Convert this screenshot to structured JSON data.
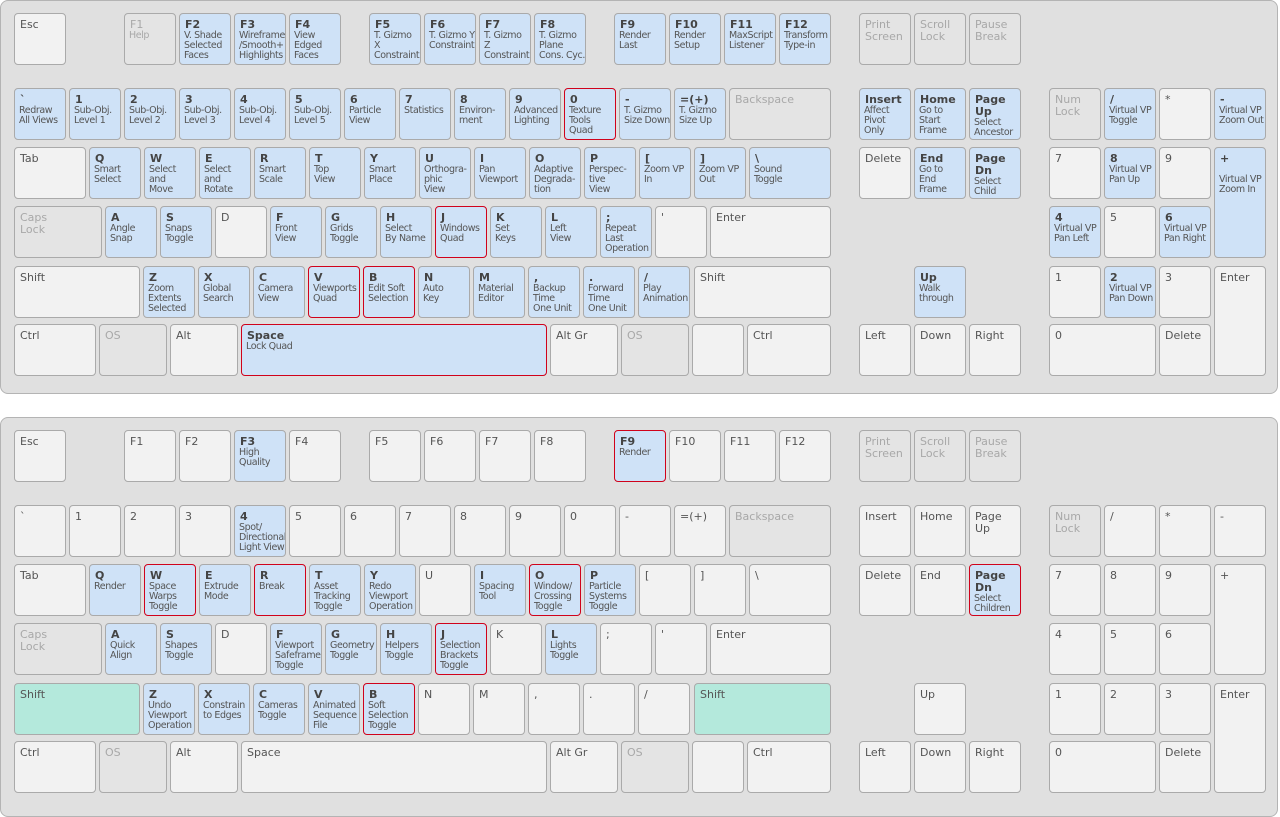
{
  "colors": {
    "mapped": "#cfe2f7",
    "selected_border": "#d0021b",
    "plain": "#f2f2f2",
    "disabled": "#e4e4e4",
    "modifier_active": "#b4e9dc",
    "panel": "#e0e0e0"
  },
  "keyboards": [
    {
      "keys": [
        {
          "k": "Esc",
          "l": "",
          "s": "p"
        },
        {
          "k": "F1",
          "l": "Help",
          "s": "d"
        },
        {
          "k": "F2",
          "l": "V. Shade\nSelected\nFaces",
          "s": "m"
        },
        {
          "k": "F3",
          "l": "Wireframe\n/Smooth+\nHighlights",
          "s": "m"
        },
        {
          "k": "F4",
          "l": "View\nEdged\nFaces",
          "s": "m"
        },
        {
          "k": "F5",
          "l": "T. Gizmo X\nConstraint",
          "s": "m"
        },
        {
          "k": "F6",
          "l": "T. Gizmo Y\nConstraint",
          "s": "m"
        },
        {
          "k": "F7",
          "l": "T. Gizmo Z\nConstraint",
          "s": "m"
        },
        {
          "k": "F8",
          "l": "T. Gizmo\nPlane\nCons. Cyc.",
          "s": "m"
        },
        {
          "k": "F9",
          "l": "Render\nLast",
          "s": "m"
        },
        {
          "k": "F10",
          "l": "Render\nSetup",
          "s": "m"
        },
        {
          "k": "F11",
          "l": "MaxScript\nListener",
          "s": "m"
        },
        {
          "k": "F12",
          "l": "Transform\nType-in",
          "s": "m"
        },
        {
          "k": "Print\nScreen",
          "l": "",
          "s": "d"
        },
        {
          "k": "Scroll\nLock",
          "l": "",
          "s": "d"
        },
        {
          "k": "Pause\nBreak",
          "l": "",
          "s": "d"
        },
        {
          "k": "`",
          "l": "Redraw\nAll Views",
          "s": "m"
        },
        {
          "k": "1",
          "l": "Sub-Obj.\nLevel 1",
          "s": "m"
        },
        {
          "k": "2",
          "l": "Sub-Obj.\nLevel 2",
          "s": "m"
        },
        {
          "k": "3",
          "l": "Sub-Obj.\nLevel 3",
          "s": "m"
        },
        {
          "k": "4",
          "l": "Sub-Obj.\nLevel 4",
          "s": "m"
        },
        {
          "k": "5",
          "l": "Sub-Obj.\nLevel 5",
          "s": "m"
        },
        {
          "k": "6",
          "l": "Particle\nView",
          "s": "m"
        },
        {
          "k": "7",
          "l": "Statistics",
          "s": "m"
        },
        {
          "k": "8",
          "l": "Environ-\nment",
          "s": "m"
        },
        {
          "k": "9",
          "l": "Advanced\nLighting",
          "s": "m"
        },
        {
          "k": "0",
          "l": "Texture\nTools\nQuad",
          "s": "s"
        },
        {
          "k": "-",
          "l": "T. Gizmo\nSize Down",
          "s": "m"
        },
        {
          "k": "=(+)",
          "l": "T. Gizmo\nSize Up",
          "s": "m"
        },
        {
          "k": "Backspace",
          "l": "",
          "s": "d"
        },
        {
          "k": "Insert",
          "l": "Affect\nPivot\nOnly",
          "s": "m"
        },
        {
          "k": "Home",
          "l": "Go to\nStart\nFrame",
          "s": "m"
        },
        {
          "k": "Page Up",
          "l": "Select\nAncestor",
          "s": "m"
        },
        {
          "k": "Num\nLock",
          "l": "",
          "s": "d"
        },
        {
          "k": "/",
          "l": "Virtual VP\nToggle",
          "s": "m"
        },
        {
          "k": "*",
          "l": "",
          "s": "p"
        },
        {
          "k": "-",
          "l": "Virtual VP\nZoom Out",
          "s": "m"
        },
        {
          "k": "Tab",
          "l": "",
          "s": "p"
        },
        {
          "k": "Q",
          "l": "Smart\nSelect",
          "s": "m"
        },
        {
          "k": "W",
          "l": "Select\nand\nMove",
          "s": "m"
        },
        {
          "k": "E",
          "l": "Select\nand\nRotate",
          "s": "m"
        },
        {
          "k": "R",
          "l": "Smart\nScale",
          "s": "m"
        },
        {
          "k": "T",
          "l": "Top\nView",
          "s": "m"
        },
        {
          "k": "Y",
          "l": "Smart\nPlace",
          "s": "m"
        },
        {
          "k": "U",
          "l": "Orthogra-\nphic\nView",
          "s": "m"
        },
        {
          "k": "I",
          "l": "Pan\nViewport",
          "s": "m"
        },
        {
          "k": "O",
          "l": "Adaptive\nDegrada-\ntion",
          "s": "m"
        },
        {
          "k": "P",
          "l": "Perspec-\ntive\nView",
          "s": "m"
        },
        {
          "k": "[",
          "l": "Zoom VP\nIn",
          "s": "m"
        },
        {
          "k": "]",
          "l": "Zoom VP\nOut",
          "s": "m"
        },
        {
          "k": "\\",
          "l": "Sound\nToggle",
          "s": "m"
        },
        {
          "k": "Delete",
          "l": "",
          "s": "p"
        },
        {
          "k": "End",
          "l": "Go to\nEnd\nFrame",
          "s": "m"
        },
        {
          "k": "Page Dn",
          "l": "Select\nChild",
          "s": "m"
        },
        {
          "k": "7",
          "l": "",
          "s": "p"
        },
        {
          "k": "8",
          "l": "Virtual VP\nPan Up",
          "s": "m"
        },
        {
          "k": "9",
          "l": "",
          "s": "p"
        },
        {
          "k": "+",
          "l": "\nVirtual VP\nZoom In",
          "s": "m"
        },
        {
          "k": "Caps\nLock",
          "l": "",
          "s": "d"
        },
        {
          "k": "A",
          "l": "Angle\nSnap",
          "s": "m"
        },
        {
          "k": "S",
          "l": "Snaps\nToggle",
          "s": "m"
        },
        {
          "k": "D",
          "l": "",
          "s": "p"
        },
        {
          "k": "F",
          "l": "Front\nView",
          "s": "m"
        },
        {
          "k": "G",
          "l": "Grids\nToggle",
          "s": "m"
        },
        {
          "k": "H",
          "l": "Select\nBy Name",
          "s": "m"
        },
        {
          "k": "J",
          "l": "Windows\nQuad",
          "s": "s"
        },
        {
          "k": "K",
          "l": "Set\nKeys",
          "s": "m"
        },
        {
          "k": "L",
          "l": "Left\nView",
          "s": "m"
        },
        {
          "k": ";",
          "l": "Repeat\nLast\nOperation",
          "s": "m"
        },
        {
          "k": "'",
          "l": "",
          "s": "p"
        },
        {
          "k": "Enter",
          "l": "",
          "s": "p"
        },
        {
          "k": "4",
          "l": "Virtual VP\nPan Left",
          "s": "m"
        },
        {
          "k": "5",
          "l": "",
          "s": "p"
        },
        {
          "k": "6",
          "l": "Virtual VP\nPan Right",
          "s": "m"
        },
        {
          "k": "Shift",
          "l": "",
          "s": "p"
        },
        {
          "k": "Z",
          "l": "Zoom\nExtents\nSelected",
          "s": "m"
        },
        {
          "k": "X",
          "l": "Global\nSearch",
          "s": "m"
        },
        {
          "k": "C",
          "l": "Camera\nView",
          "s": "m"
        },
        {
          "k": "V",
          "l": "Viewports\nQuad",
          "s": "s"
        },
        {
          "k": "B",
          "l": "Edit Soft\nSelection",
          "s": "s"
        },
        {
          "k": "N",
          "l": "Auto\nKey",
          "s": "m"
        },
        {
          "k": "M",
          "l": "Material\nEditor",
          "s": "m"
        },
        {
          "k": ",",
          "l": "Backup\nTime\nOne Unit",
          "s": "m"
        },
        {
          "k": ".",
          "l": "Forward\nTime\nOne Unit",
          "s": "m"
        },
        {
          "k": "/",
          "l": "Play\nAnimation",
          "s": "m"
        },
        {
          "k": "Shift",
          "l": "",
          "s": "p"
        },
        {
          "k": "Up",
          "l": "Walk\nthrough",
          "s": "m"
        },
        {
          "k": "1",
          "l": "",
          "s": "p"
        },
        {
          "k": "2",
          "l": "Virtual VP\nPan Down",
          "s": "m"
        },
        {
          "k": "3",
          "l": "",
          "s": "p"
        },
        {
          "k": "Enter",
          "l": "",
          "s": "p"
        },
        {
          "k": "Ctrl",
          "l": "",
          "s": "p"
        },
        {
          "k": "OS",
          "l": "",
          "s": "d"
        },
        {
          "k": "Alt",
          "l": "",
          "s": "p"
        },
        {
          "k": "Space",
          "l": "Lock Quad",
          "s": "s"
        },
        {
          "k": "Alt Gr",
          "l": "",
          "s": "p"
        },
        {
          "k": "OS",
          "l": "",
          "s": "d"
        },
        {
          "k": "",
          "l": "",
          "s": "p"
        },
        {
          "k": "Ctrl",
          "l": "",
          "s": "p"
        },
        {
          "k": "Left",
          "l": "",
          "s": "p"
        },
        {
          "k": "Down",
          "l": "",
          "s": "p"
        },
        {
          "k": "Right",
          "l": "",
          "s": "p"
        },
        {
          "k": "0",
          "l": "",
          "s": "p"
        },
        {
          "k": "Delete",
          "l": "",
          "s": "p"
        }
      ]
    },
    {
      "keys": [
        {
          "k": "Esc",
          "l": "",
          "s": "p"
        },
        {
          "k": "F1",
          "l": "",
          "s": "p"
        },
        {
          "k": "F2",
          "l": "",
          "s": "p"
        },
        {
          "k": "F3",
          "l": "High\nQuality",
          "s": "m"
        },
        {
          "k": "F4",
          "l": "",
          "s": "p"
        },
        {
          "k": "F5",
          "l": "",
          "s": "p"
        },
        {
          "k": "F6",
          "l": "",
          "s": "p"
        },
        {
          "k": "F7",
          "l": "",
          "s": "p"
        },
        {
          "k": "F8",
          "l": "",
          "s": "p"
        },
        {
          "k": "F9",
          "l": "Render",
          "s": "s"
        },
        {
          "k": "F10",
          "l": "",
          "s": "p"
        },
        {
          "k": "F11",
          "l": "",
          "s": "p"
        },
        {
          "k": "F12",
          "l": "",
          "s": "p"
        },
        {
          "k": "Print\nScreen",
          "l": "",
          "s": "d"
        },
        {
          "k": "Scroll\nLock",
          "l": "",
          "s": "d"
        },
        {
          "k": "Pause\nBreak",
          "l": "",
          "s": "d"
        },
        {
          "k": "`",
          "l": "",
          "s": "p"
        },
        {
          "k": "1",
          "l": "",
          "s": "p"
        },
        {
          "k": "2",
          "l": "",
          "s": "p"
        },
        {
          "k": "3",
          "l": "",
          "s": "p"
        },
        {
          "k": "4",
          "l": "Spot/\nDirectional\nLight View",
          "s": "m"
        },
        {
          "k": "5",
          "l": "",
          "s": "p"
        },
        {
          "k": "6",
          "l": "",
          "s": "p"
        },
        {
          "k": "7",
          "l": "",
          "s": "p"
        },
        {
          "k": "8",
          "l": "",
          "s": "p"
        },
        {
          "k": "9",
          "l": "",
          "s": "p"
        },
        {
          "k": "0",
          "l": "",
          "s": "p"
        },
        {
          "k": "-",
          "l": "",
          "s": "p"
        },
        {
          "k": "=(+)",
          "l": "",
          "s": "p"
        },
        {
          "k": "Backspace",
          "l": "",
          "s": "d"
        },
        {
          "k": "Insert",
          "l": "",
          "s": "p"
        },
        {
          "k": "Home",
          "l": "",
          "s": "p"
        },
        {
          "k": "Page Up",
          "l": "",
          "s": "p"
        },
        {
          "k": "Num\nLock",
          "l": "",
          "s": "d"
        },
        {
          "k": "/",
          "l": "",
          "s": "p"
        },
        {
          "k": "*",
          "l": "",
          "s": "p"
        },
        {
          "k": "-",
          "l": "",
          "s": "p"
        },
        {
          "k": "Tab",
          "l": "",
          "s": "p"
        },
        {
          "k": "Q",
          "l": "Render",
          "s": "m"
        },
        {
          "k": "W",
          "l": "Space\nWarps\nToggle",
          "s": "s"
        },
        {
          "k": "E",
          "l": "Extrude\nMode",
          "s": "m"
        },
        {
          "k": "R",
          "l": "Break",
          "s": "s"
        },
        {
          "k": "T",
          "l": "Asset\nTracking\nToggle",
          "s": "m"
        },
        {
          "k": "Y",
          "l": "Redo\nViewport\nOperation",
          "s": "m"
        },
        {
          "k": "U",
          "l": "",
          "s": "p"
        },
        {
          "k": "I",
          "l": "Spacing\nTool",
          "s": "m"
        },
        {
          "k": "O",
          "l": "Window/\nCrossing\nToggle",
          "s": "s"
        },
        {
          "k": "P",
          "l": "Particle\nSystems\nToggle",
          "s": "m"
        },
        {
          "k": "[",
          "l": "",
          "s": "p"
        },
        {
          "k": "]",
          "l": "",
          "s": "p"
        },
        {
          "k": "\\",
          "l": "",
          "s": "p"
        },
        {
          "k": "Delete",
          "l": "",
          "s": "p"
        },
        {
          "k": "End",
          "l": "",
          "s": "p"
        },
        {
          "k": "Page Dn",
          "l": "Select\nChildren",
          "s": "s"
        },
        {
          "k": "7",
          "l": "",
          "s": "p"
        },
        {
          "k": "8",
          "l": "",
          "s": "p"
        },
        {
          "k": "9",
          "l": "",
          "s": "p"
        },
        {
          "k": "+",
          "l": "",
          "s": "p"
        },
        {
          "k": "Caps\nLock",
          "l": "",
          "s": "d"
        },
        {
          "k": "A",
          "l": "Quick\nAlign",
          "s": "m"
        },
        {
          "k": "S",
          "l": "Shapes\nToggle",
          "s": "m"
        },
        {
          "k": "D",
          "l": "",
          "s": "p"
        },
        {
          "k": "F",
          "l": "Viewport\nSafeframes\nToggle",
          "s": "m"
        },
        {
          "k": "G",
          "l": "Geometry\nToggle",
          "s": "m"
        },
        {
          "k": "H",
          "l": "Helpers\nToggle",
          "s": "m"
        },
        {
          "k": "J",
          "l": "Selection\nBrackets\nToggle",
          "s": "s"
        },
        {
          "k": "K",
          "l": "",
          "s": "p"
        },
        {
          "k": "L",
          "l": "Lights\nToggle",
          "s": "m"
        },
        {
          "k": ";",
          "l": "",
          "s": "p"
        },
        {
          "k": "'",
          "l": "",
          "s": "p"
        },
        {
          "k": "Enter",
          "l": "",
          "s": "p"
        },
        {
          "k": "4",
          "l": "",
          "s": "p"
        },
        {
          "k": "5",
          "l": "",
          "s": "p"
        },
        {
          "k": "6",
          "l": "",
          "s": "p"
        },
        {
          "k": "Shift",
          "l": "",
          "s": "g"
        },
        {
          "k": "Z",
          "l": "Undo\nViewport\nOperation",
          "s": "m"
        },
        {
          "k": "X",
          "l": "Constrain\nto Edges",
          "s": "m"
        },
        {
          "k": "C",
          "l": "Cameras\nToggle",
          "s": "m"
        },
        {
          "k": "V",
          "l": "Animated\nSequence\nFile",
          "s": "m"
        },
        {
          "k": "B",
          "l": "Soft\nSelection\nToggle",
          "s": "s"
        },
        {
          "k": "N",
          "l": "",
          "s": "p"
        },
        {
          "k": "M",
          "l": "",
          "s": "p"
        },
        {
          "k": ",",
          "l": "",
          "s": "p"
        },
        {
          "k": ".",
          "l": "",
          "s": "p"
        },
        {
          "k": "/",
          "l": "",
          "s": "p"
        },
        {
          "k": "Shift",
          "l": "",
          "s": "g"
        },
        {
          "k": "Up",
          "l": "",
          "s": "p"
        },
        {
          "k": "1",
          "l": "",
          "s": "p"
        },
        {
          "k": "2",
          "l": "",
          "s": "p"
        },
        {
          "k": "3",
          "l": "",
          "s": "p"
        },
        {
          "k": "Enter",
          "l": "",
          "s": "p"
        },
        {
          "k": "Ctrl",
          "l": "",
          "s": "p"
        },
        {
          "k": "OS",
          "l": "",
          "s": "d"
        },
        {
          "k": "Alt",
          "l": "",
          "s": "p"
        },
        {
          "k": "Space",
          "l": "",
          "s": "p"
        },
        {
          "k": "Alt Gr",
          "l": "",
          "s": "p"
        },
        {
          "k": "OS",
          "l": "",
          "s": "d"
        },
        {
          "k": "",
          "l": "",
          "s": "p"
        },
        {
          "k": "Ctrl",
          "l": "",
          "s": "p"
        },
        {
          "k": "Left",
          "l": "",
          "s": "p"
        },
        {
          "k": "Down",
          "l": "",
          "s": "p"
        },
        {
          "k": "Right",
          "l": "",
          "s": "p"
        },
        {
          "k": "0",
          "l": "",
          "s": "p"
        },
        {
          "k": "Delete",
          "l": "",
          "s": "p"
        }
      ]
    }
  ]
}
